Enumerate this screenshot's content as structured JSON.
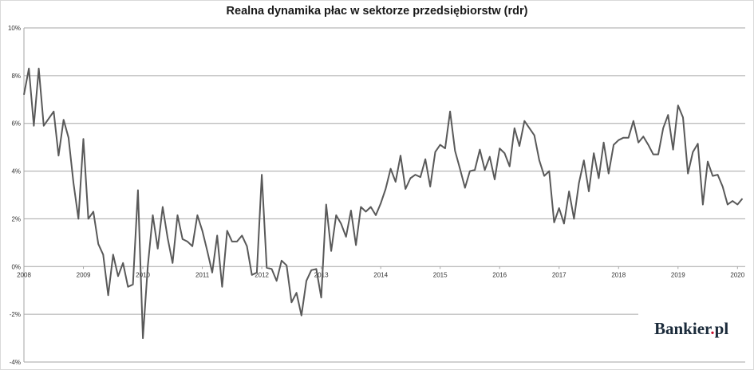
{
  "chart_data": {
    "type": "line",
    "title": "Realna dynamika płac w sektorze przedsiębiorstw (rdr)",
    "xlabel": "",
    "ylabel": "",
    "ylim": [
      -4,
      10
    ],
    "xlim": [
      2008.0,
      2020.13
    ],
    "grid": true,
    "y_ticks": [
      "-4%",
      "-2%",
      "0%",
      "2%",
      "4%",
      "6%",
      "8%",
      "10%"
    ],
    "y_tick_values": [
      -4,
      -2,
      0,
      2,
      4,
      6,
      8,
      10
    ],
    "x_ticks": [
      "2008",
      "2009",
      "2010",
      "2011",
      "2012",
      "2013",
      "2014",
      "2015",
      "2016",
      "2017",
      "2018",
      "2019",
      "2020"
    ],
    "series": [
      {
        "color": "#595959",
        "x": [
          2008.0,
          2008.083,
          2008.167,
          2008.25,
          2008.333,
          2008.417,
          2008.5,
          2008.583,
          2008.667,
          2008.75,
          2008.833,
          2008.917,
          2009.0,
          2009.083,
          2009.167,
          2009.25,
          2009.333,
          2009.417,
          2009.5,
          2009.583,
          2009.667,
          2009.75,
          2009.833,
          2009.917,
          2010.0,
          2010.083,
          2010.167,
          2010.25,
          2010.333,
          2010.417,
          2010.5,
          2010.583,
          2010.667,
          2010.75,
          2010.833,
          2010.917,
          2011.0,
          2011.083,
          2011.167,
          2011.25,
          2011.333,
          2011.417,
          2011.5,
          2011.583,
          2011.667,
          2011.75,
          2011.833,
          2011.917,
          2012.0,
          2012.083,
          2012.167,
          2012.25,
          2012.333,
          2012.417,
          2012.5,
          2012.583,
          2012.667,
          2012.75,
          2012.833,
          2012.917,
          2013.0,
          2013.083,
          2013.167,
          2013.25,
          2013.333,
          2013.417,
          2013.5,
          2013.583,
          2013.667,
          2013.75,
          2013.833,
          2013.917,
          2014.0,
          2014.083,
          2014.167,
          2014.25,
          2014.333,
          2014.417,
          2014.5,
          2014.583,
          2014.667,
          2014.75,
          2014.833,
          2014.917,
          2015.0,
          2015.083,
          2015.167,
          2015.25,
          2015.333,
          2015.417,
          2015.5,
          2015.583,
          2015.667,
          2015.75,
          2015.833,
          2015.917,
          2016.0,
          2016.083,
          2016.167,
          2016.25,
          2016.333,
          2016.417,
          2016.5,
          2016.583,
          2016.667,
          2016.75,
          2016.833,
          2016.917,
          2017.0,
          2017.083,
          2017.167,
          2017.25,
          2017.333,
          2017.417,
          2017.5,
          2017.583,
          2017.667,
          2017.75,
          2017.833,
          2017.917,
          2018.0,
          2018.083,
          2018.167,
          2018.25,
          2018.333,
          2018.417,
          2018.5,
          2018.583,
          2018.667,
          2018.75,
          2018.833,
          2018.917,
          2019.0,
          2019.083,
          2019.167,
          2019.25,
          2019.333,
          2019.417,
          2019.5,
          2019.583,
          2019.667,
          2019.75,
          2019.833,
          2019.917,
          2020.0,
          2020.083
        ],
        "values": [
          7.2,
          8.3,
          5.9,
          8.3,
          5.9,
          6.2,
          6.5,
          4.65,
          6.15,
          5.4,
          3.5,
          2.0,
          5.35,
          2.0,
          2.3,
          0.95,
          0.5,
          -1.2,
          0.5,
          -0.4,
          0.15,
          -0.85,
          -0.75,
          3.2,
          -3.0,
          0.0,
          2.15,
          0.75,
          2.5,
          1.2,
          0.15,
          2.15,
          1.15,
          1.05,
          0.85,
          2.15,
          1.5,
          0.65,
          -0.25,
          1.3,
          -0.85,
          1.5,
          1.05,
          1.05,
          1.3,
          0.85,
          -0.35,
          -0.25,
          3.85,
          -0.05,
          -0.1,
          -0.6,
          0.25,
          0.05,
          -1.5,
          -1.1,
          -2.05,
          -0.6,
          -0.15,
          -0.1,
          -1.3,
          2.6,
          0.65,
          2.15,
          1.8,
          1.25,
          2.35,
          0.9,
          2.5,
          2.3,
          2.5,
          2.15,
          2.65,
          3.25,
          4.1,
          3.55,
          4.65,
          3.25,
          3.7,
          3.85,
          3.75,
          4.5,
          3.35,
          4.8,
          5.1,
          4.95,
          6.5,
          4.85,
          4.1,
          3.3,
          4.0,
          4.05,
          4.9,
          4.05,
          4.6,
          3.65,
          4.95,
          4.75,
          4.2,
          5.8,
          5.05,
          6.1,
          5.8,
          5.5,
          4.45,
          3.8,
          4.0,
          1.85,
          2.45,
          1.8,
          3.15,
          2.0,
          3.5,
          4.45,
          3.15,
          4.75,
          3.7,
          5.2,
          3.9,
          5.1,
          5.3,
          5.4,
          5.4,
          6.1,
          5.2,
          5.45,
          5.1,
          4.7,
          4.7,
          5.8,
          6.35,
          4.9,
          6.75,
          6.25,
          3.9,
          4.8,
          5.15,
          2.6,
          4.4,
          3.8,
          3.85,
          3.35,
          2.6,
          2.75,
          2.6,
          2.85
        ]
      }
    ]
  },
  "branding": {
    "logo_text": "Bankier",
    "logo_dot": ".",
    "logo_suffix": "pl"
  }
}
